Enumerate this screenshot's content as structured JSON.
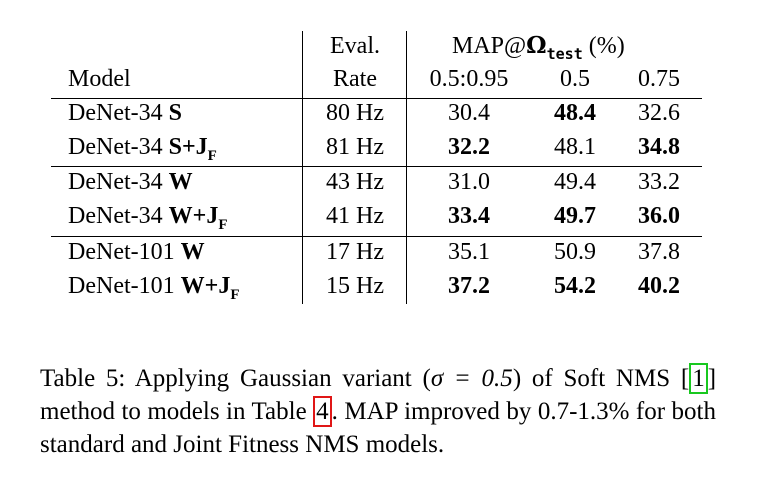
{
  "table": {
    "header": {
      "model": "Model",
      "eval_line1": "Eval.",
      "eval_line2": "Rate",
      "map_prefix": "MAP@",
      "map_symbol": "Ω",
      "map_subscript": "test",
      "map_suffix": " (%)",
      "col_0595": "0.5:0.95",
      "col_05": "0.5",
      "col_075": "0.75"
    },
    "rows": [
      {
        "model": "DeNet-34 ",
        "variant": "S",
        "sub": "",
        "rate": "80 Hz",
        "m1": "30.4",
        "m2": "48.4",
        "m3": "32.6",
        "bold": [
          false,
          true,
          false
        ]
      },
      {
        "model": "DeNet-34 ",
        "variant": "S+J",
        "sub": "F",
        "rate": "81 Hz",
        "m1": "32.2",
        "m2": "48.1",
        "m3": "34.8",
        "bold": [
          true,
          false,
          true
        ]
      },
      {
        "model": "DeNet-34 ",
        "variant": "W",
        "sub": "",
        "rate": "43 Hz",
        "m1": "31.0",
        "m2": "49.4",
        "m3": "33.2",
        "bold": [
          false,
          false,
          false
        ]
      },
      {
        "model": "DeNet-34 ",
        "variant": "W+J",
        "sub": "F",
        "rate": "41 Hz",
        "m1": "33.4",
        "m2": "49.7",
        "m3": "36.0",
        "bold": [
          true,
          true,
          true
        ]
      },
      {
        "model": "DeNet-101 ",
        "variant": "W",
        "sub": "",
        "rate": "17 Hz",
        "m1": "35.1",
        "m2": "50.9",
        "m3": "37.8",
        "bold": [
          false,
          false,
          false
        ]
      },
      {
        "model": "DeNet-101 ",
        "variant": "W+J",
        "sub": "F",
        "rate": "15 Hz",
        "m1": "37.2",
        "m2": "54.2",
        "m3": "40.2",
        "bold": [
          true,
          true,
          true
        ]
      }
    ]
  },
  "caption": {
    "part1": "Table 5: Applying Gaussian variant (",
    "sigma": "σ = 0.5",
    "part2": ") of Soft NMS ",
    "cite": "1",
    "part3": " method to models in Table ",
    "table_ref": "4",
    "part4": ". MAP improved by 0.7-1.3% for both standard and Joint Fitness NMS models."
  }
}
